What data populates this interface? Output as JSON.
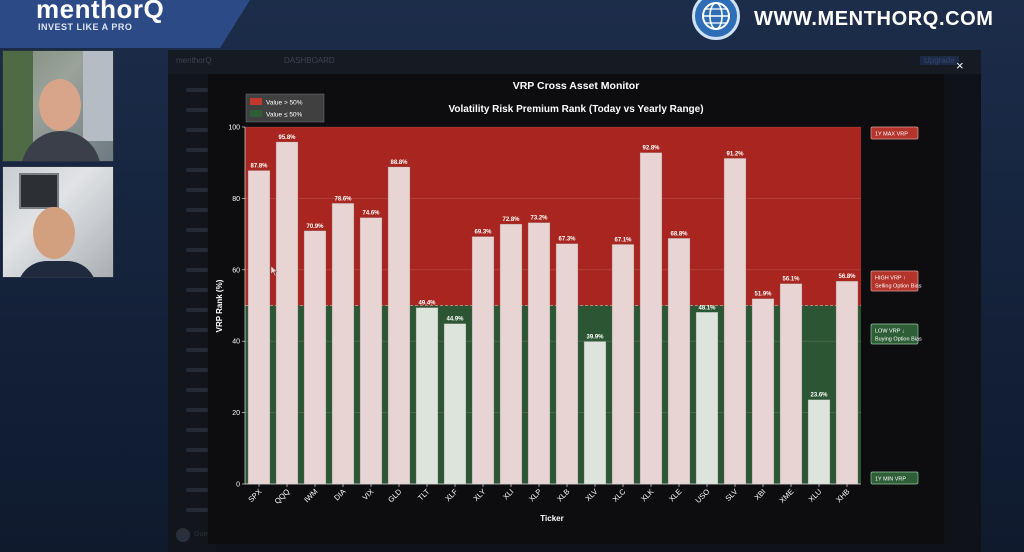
{
  "brand": {
    "logo": "menthorQ",
    "tagline": "INVEST LIKE A PRO",
    "url": "WWW.MENTHORQ.COM"
  },
  "app": {
    "logo": "menthorQ",
    "tab": "DASHBOARD",
    "top_right": "Upgrade",
    "footer_user": "Guestuser"
  },
  "icons": {
    "globe": "globe-icon",
    "close": "close-icon",
    "cursor": "cursor-icon"
  },
  "modal": {
    "title": "VRP Cross Asset Monitor",
    "close_label": "×"
  },
  "chart_data": {
    "type": "bar",
    "title": "Volatility Risk Premium Rank (Today vs Yearly Range)",
    "xlabel": "Ticker",
    "ylabel": "VRP Rank (%)",
    "ylim": [
      0,
      100
    ],
    "yticks": [
      0,
      20,
      40,
      60,
      80,
      100
    ],
    "threshold": 50,
    "grid": true,
    "legend_position": "top-left",
    "legend": [
      {
        "label": "Value > 50%",
        "color": "#c0392b"
      },
      {
        "label": "Value ≤ 50%",
        "color": "#2e5e36"
      }
    ],
    "categories": [
      "SPX",
      "QQQ",
      "IWM",
      "DIA",
      "VIX",
      "GLD",
      "TLT",
      "XLF",
      "XLY",
      "XLI",
      "XLP",
      "XLB",
      "XLV",
      "XLC",
      "XLK",
      "XLE",
      "USO",
      "SLV",
      "XBI",
      "XME",
      "XLU",
      "XHB"
    ],
    "values": [
      87.8,
      95.8,
      70.9,
      78.6,
      74.6,
      88.8,
      49.4,
      44.9,
      69.3,
      72.8,
      73.2,
      67.3,
      39.9,
      67.1,
      92.8,
      68.8,
      48.1,
      91.2,
      51.9,
      56.1,
      23.6,
      56.8
    ],
    "value_labels": [
      "87.8%",
      "95.8%",
      "70.9%",
      "78.6%",
      "74.6%",
      "88.8%",
      "49.4%",
      "44.9%",
      "69.3%",
      "72.8%",
      "73.2%",
      "67.3%",
      "39.9%",
      "67.1%",
      "92.8%",
      "68.8%",
      "48.1%",
      "91.2%",
      "51.9%",
      "56.1%",
      "23.6%",
      "56.8%"
    ],
    "annotations": {
      "max": "1Y MAX VRP",
      "high_1": "HIGH VRP ↑",
      "high_2": "Selling Option Bias",
      "low_1": "LOW VRP ↓",
      "low_2": "Buying Option Bias",
      "min": "1Y MIN VRP"
    },
    "colors": {
      "high_zone": "#a8261f",
      "low_zone": "#2c5633",
      "bar": "#e9d4d4",
      "bar_low": "#dde4dc"
    }
  }
}
